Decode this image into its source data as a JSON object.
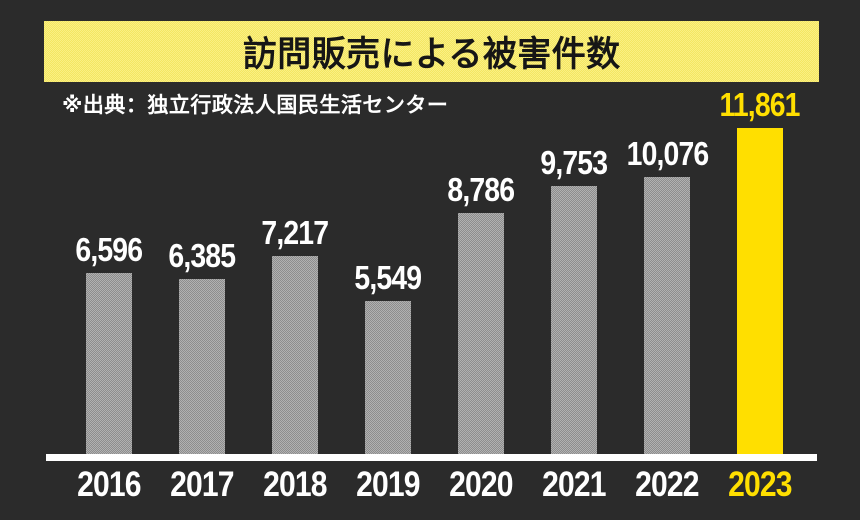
{
  "title": "訪問販売による被害件数",
  "source_note": "※出典：独立行政法人国民生活センター",
  "colors": {
    "background": "#2b2b2b",
    "banner_bg": "#f7ea6f",
    "banner_text": "#161616",
    "bar_default": "#9e9e9e",
    "bar_highlight": "#ffdf00",
    "value_label_default": "#ffffff",
    "value_label_highlight": "#ffdf00",
    "axis_line": "#ffffff"
  },
  "chart_data": {
    "type": "bar",
    "title": "訪問販売による被害件数",
    "categories": [
      "2016",
      "2017",
      "2018",
      "2019",
      "2020",
      "2021",
      "2022",
      "2023"
    ],
    "values": [
      6596,
      6385,
      7217,
      5549,
      8786,
      9753,
      10076,
      11861
    ],
    "value_labels": [
      "6,596",
      "6,385",
      "7,217",
      "5,549",
      "8,786",
      "9,753",
      "10,076",
      "11,861"
    ],
    "highlight_category": "2023",
    "highlight_index": 7,
    "xlabel": "",
    "ylabel": "",
    "ylim": [
      0,
      12000
    ],
    "grid": false,
    "legend": null,
    "annotations": [
      "※出典：独立行政法人国民生活センター"
    ]
  }
}
